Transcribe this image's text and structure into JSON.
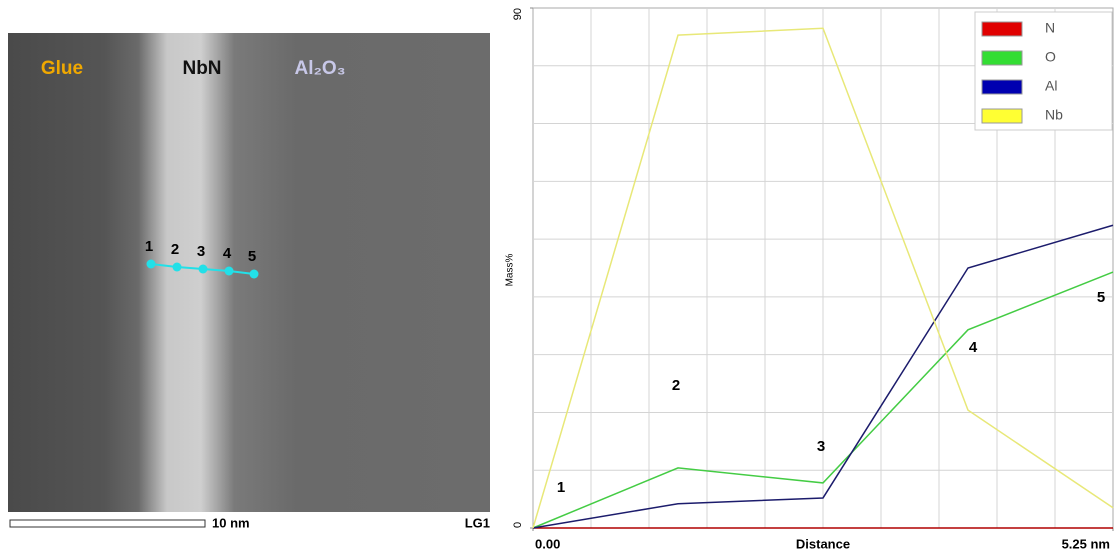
{
  "image": {
    "labels": [
      "Glue",
      "NbN",
      "Al₂O₃"
    ],
    "point_labels": [
      "1",
      "2",
      "3",
      "4",
      "5"
    ],
    "scale_bar": "10 nm",
    "id": "LG1"
  },
  "chart_data": {
    "type": "line",
    "xlabel": "Distance",
    "ylabel": "Mass%",
    "x": [
      0,
      1.3125,
      2.625,
      3.9375,
      5.25
    ],
    "series": [
      {
        "name": "N",
        "color": "#e00000",
        "line_color": "#b00000",
        "values": [
          0,
          0,
          0,
          0,
          0
        ]
      },
      {
        "name": "O",
        "color": "#33dd33",
        "line_color": "#44cc44",
        "values": [
          0,
          10.4,
          7.8,
          34.3,
          44.3
        ]
      },
      {
        "name": "Al",
        "color": "#0000b0",
        "line_color": "#1c1c6c",
        "values": [
          0,
          4.2,
          5.2,
          45.0,
          52.4
        ]
      },
      {
        "name": "Nb",
        "color": "#ffff33",
        "line_color": "#e8e878",
        "values": [
          0,
          85.3,
          86.5,
          20.4,
          3.5
        ]
      }
    ],
    "point_labels": [
      "1",
      "2",
      "3",
      "4",
      "5"
    ],
    "xlim": [
      0,
      5.25
    ],
    "ylim": [
      0,
      90
    ],
    "xticks": [
      {
        "value": 0,
        "label": "0.00"
      },
      {
        "value": 5.25,
        "label": "5.25 nm"
      }
    ],
    "yticks": [
      0,
      90
    ],
    "xgrid": [
      0.525,
      1.05,
      1.575,
      2.1,
      2.625,
      3.15,
      3.675,
      4.2,
      4.725
    ],
    "ygrid": [
      10,
      20,
      30,
      40,
      50,
      60,
      70,
      80
    ],
    "grid": true,
    "legend": "upper right"
  }
}
